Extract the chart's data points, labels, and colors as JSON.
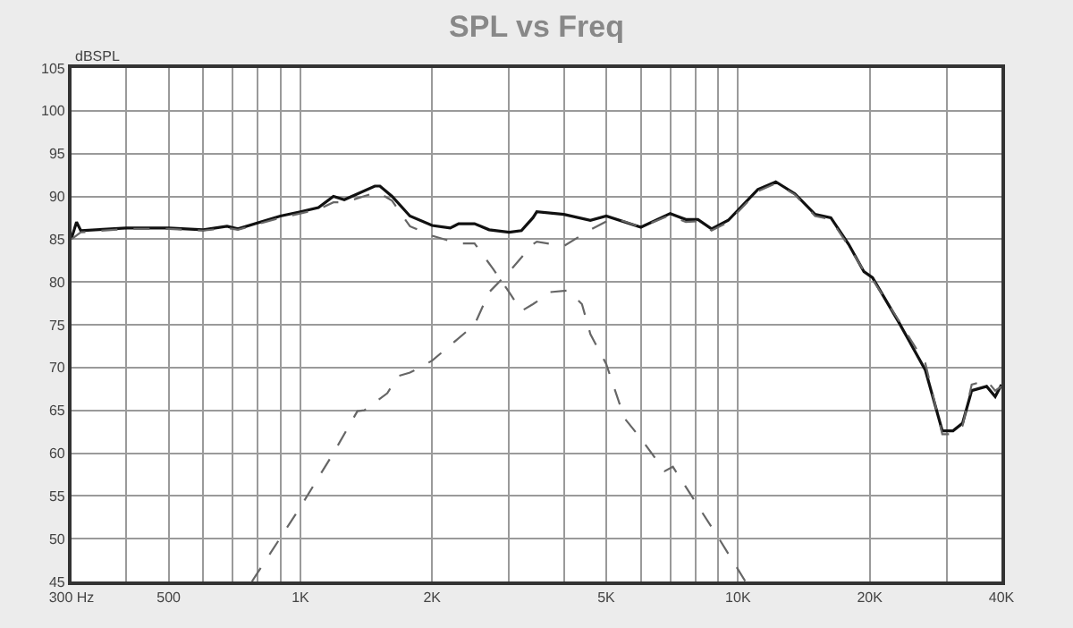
{
  "chart_data": {
    "type": "line",
    "title": "SPL vs Freq",
    "ylabel": "dBSPL",
    "xlim": [
      300,
      40000
    ],
    "ylim": [
      45,
      105
    ],
    "log": "x",
    "grid": true,
    "marker": "none",
    "xticks": [
      {
        "value": 300,
        "label": "300 Hz"
      },
      {
        "value": 400,
        "label": null
      },
      {
        "value": 500,
        "label": "500"
      },
      {
        "value": 600,
        "label": null
      },
      {
        "value": 700,
        "label": null
      },
      {
        "value": 800,
        "label": null
      },
      {
        "value": 900,
        "label": null
      },
      {
        "value": 1000,
        "label": "1K"
      },
      {
        "value": 2000,
        "label": "2K"
      },
      {
        "value": 3000,
        "label": null
      },
      {
        "value": 4000,
        "label": null
      },
      {
        "value": 5000,
        "label": "5K"
      },
      {
        "value": 6000,
        "label": null
      },
      {
        "value": 7000,
        "label": null
      },
      {
        "value": 8000,
        "label": null
      },
      {
        "value": 9000,
        "label": null
      },
      {
        "value": 10000,
        "label": "10K"
      },
      {
        "value": 20000,
        "label": "20K"
      },
      {
        "value": 30000,
        "label": null
      },
      {
        "value": 40000,
        "label": "40K"
      }
    ],
    "yticks": [
      45,
      50,
      55,
      60,
      65,
      70,
      75,
      80,
      85,
      90,
      95,
      100,
      105
    ],
    "series": [
      {
        "color": "#111111",
        "line_style": "solid",
        "x": [
          300,
          308,
          315,
          400,
          500,
          600,
          680,
          720,
          900,
          1000,
          1100,
          1190,
          1260,
          1480,
          1520,
          1620,
          1780,
          2000,
          2200,
          2300,
          2500,
          2700,
          3000,
          3200,
          3400,
          3470,
          4000,
          4600,
          5000,
          6000,
          7000,
          7600,
          8100,
          8700,
          9500,
          11100,
          12200,
          13500,
          15000,
          16300,
          17900,
          19400,
          20300,
          23300,
          26800,
          29300,
          31000,
          32600,
          34200,
          37000,
          38700,
          40000
        ],
        "values": [
          85.1,
          87,
          86,
          86.3,
          86.3,
          86.1,
          86.5,
          86.2,
          87.7,
          88.2,
          88.7,
          90,
          89.6,
          91.2,
          91.2,
          90,
          87.7,
          86.6,
          86.3,
          86.8,
          86.8,
          86.1,
          85.8,
          86,
          87.5,
          88.2,
          87.9,
          87.2,
          87.7,
          86.4,
          88,
          87.3,
          87.3,
          86.2,
          87.2,
          90.8,
          91.7,
          90.3,
          87.9,
          87.5,
          84.4,
          81.2,
          80.5,
          75.3,
          69.7,
          62.6,
          62.6,
          63.5,
          67.3,
          67.8,
          66.6,
          68
        ]
      },
      {
        "color": "#666666",
        "line_style": "dashed",
        "x": [
          300,
          315,
          400,
          500,
          600,
          680,
          720,
          900,
          1000,
          1100,
          1190,
          1260,
          1500,
          1620,
          1780,
          2000,
          2300,
          2500,
          2750,
          3000,
          3200,
          3400,
          3470,
          3700,
          4100,
          4400,
          4600,
          5000,
          5500,
          6000,
          6800,
          7100,
          7900,
          9000,
          10400
        ],
        "values": [
          85,
          85.8,
          86.2,
          86.2,
          86,
          86.3,
          86.1,
          87.5,
          88,
          88.5,
          89.3,
          89.3,
          90.5,
          89.5,
          86.5,
          85.4,
          84.5,
          84.5,
          81.6,
          78.8,
          76.6,
          77.4,
          77.7,
          78.8,
          79,
          77.4,
          73.9,
          70.4,
          64.1,
          61.7,
          57.9,
          58.4,
          54.7,
          50.2,
          45
        ]
      },
      {
        "color": "#666666",
        "line_style": "dashed",
        "x": [
          775,
          1000,
          1190,
          1350,
          1400,
          1580,
          1670,
          1780,
          2000,
          2500,
          2700,
          3000,
          3400,
          3470,
          4000,
          4600,
          5200,
          6000,
          7000,
          7600,
          8100,
          8700,
          9500,
          11100,
          12200,
          13500,
          15000,
          16300,
          17900,
          19400,
          20300,
          23300,
          26800,
          29300,
          31000,
          32600,
          34200,
          37000,
          38700,
          40000
        ],
        "values": [
          45,
          53.7,
          60,
          64.9,
          65,
          67,
          69,
          69.4,
          70.8,
          75,
          78.8,
          81.2,
          84.4,
          84.7,
          84.2,
          86.1,
          87.5,
          86.4,
          87.8,
          87,
          87.1,
          86,
          87,
          90.6,
          91.5,
          90.2,
          87.7,
          87.3,
          84.2,
          81.3,
          80.3,
          75.5,
          70.5,
          62.2,
          62.2,
          63.2,
          68,
          68.5,
          67.3,
          67.8
        ]
      }
    ]
  }
}
